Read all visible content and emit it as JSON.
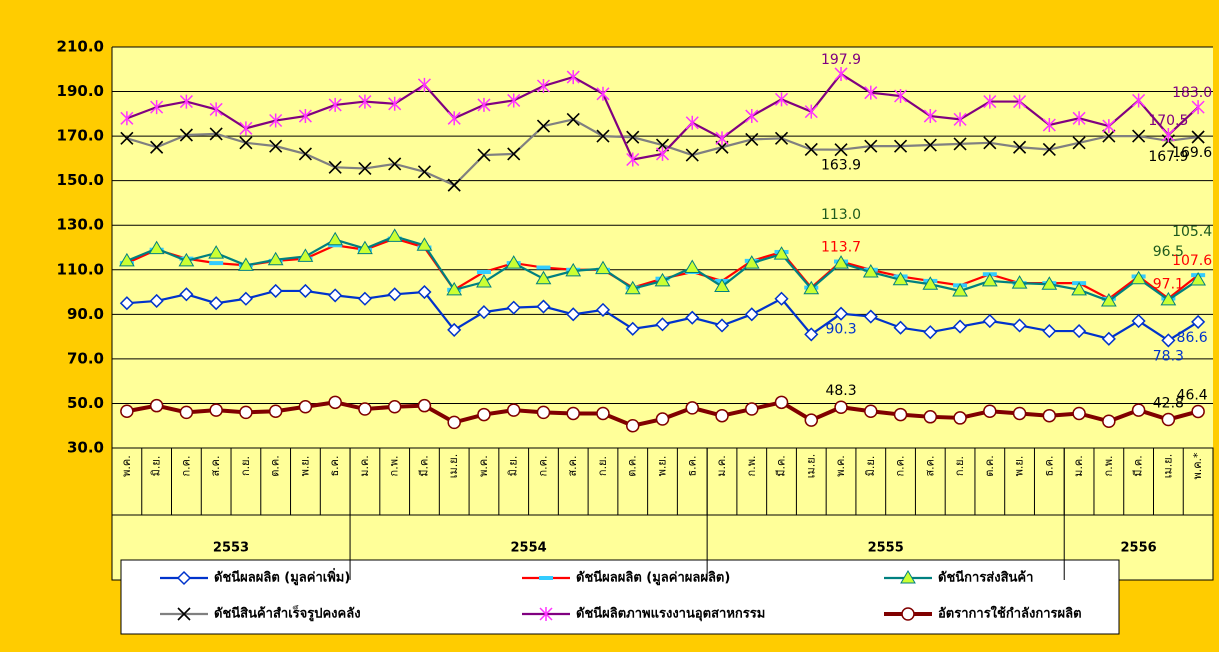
{
  "chart_data": {
    "type": "line",
    "categories": [
      "พ.ค.",
      "มิ.ย.",
      "ก.ค.",
      "ส.ค.",
      "ก.ย.",
      "ต.ค.",
      "พ.ย.",
      "ธ.ค.",
      "ม.ค.",
      "ก.พ.",
      "มี.ค.",
      "เม.ย.",
      "พ.ค.",
      "มิ.ย.",
      "ก.ค.",
      "ส.ค.",
      "ก.ย.",
      "ต.ค.",
      "พ.ย.",
      "ธ.ค.",
      "ม.ค.",
      "ก.พ.",
      "มี.ค.",
      "เม.ย.",
      "พ.ค.",
      "มิ.ย.",
      "ก.ค.",
      "ส.ค.",
      "ก.ย.",
      "ต.ค.",
      "พ.ย.",
      "ธ.ค.",
      "ม.ค.",
      "ก.พ.",
      "มี.ค.",
      "เม.ย.",
      "พ.ค.*"
    ],
    "groups": [
      {
        "label": "2553",
        "count": 8
      },
      {
        "label": "2554",
        "count": 12
      },
      {
        "label": "2555",
        "count": 12
      },
      {
        "label": "2556",
        "count": 5
      }
    ],
    "ylim": [
      30,
      210
    ],
    "yticks": [
      {
        "value": 30,
        "label": "30.0"
      },
      {
        "value": 50,
        "label": "50.0"
      },
      {
        "value": 70,
        "label": "70.0"
      },
      {
        "value": 90,
        "label": "90.0"
      },
      {
        "value": 110,
        "label": "110.0"
      },
      {
        "value": 130,
        "label": "130.0"
      },
      {
        "value": 150,
        "label": "150.0"
      },
      {
        "value": 170,
        "label": "170.0"
      },
      {
        "value": 190,
        "label": "190.0"
      },
      {
        "value": 210,
        "label": "210.0"
      }
    ],
    "grid": true,
    "series": [
      {
        "name": "ดัชนีผลผลิต (มูลค่าเพิ่ม)",
        "color": "#0033cc",
        "marker": "diamond",
        "marker_color": "#ffffff",
        "label_color": "#0033cc",
        "values": [
          95,
          96,
          99,
          95,
          97,
          100.5,
          100.5,
          98.5,
          97,
          99,
          100,
          83,
          91,
          93,
          93.5,
          90,
          92,
          83.5,
          85.5,
          88.5,
          85,
          90,
          97,
          81,
          90.3,
          89,
          84,
          82,
          84.5,
          87,
          85,
          82.5,
          82.5,
          79,
          87,
          78.3,
          86.6
        ],
        "value_labels": [
          null,
          null,
          null,
          null,
          null,
          null,
          null,
          null,
          null,
          null,
          null,
          null,
          null,
          null,
          null,
          null,
          null,
          null,
          null,
          null,
          null,
          null,
          null,
          null,
          "90.3",
          null,
          null,
          null,
          null,
          null,
          null,
          null,
          null,
          null,
          null,
          "78.3",
          "86.6"
        ]
      },
      {
        "name": "ดัชนีผลผลิต (มูลค่าผลผลิต)",
        "color": "#ff0000",
        "marker": "dash",
        "marker_color": "#33ccff",
        "label_color": "#ff0000",
        "values": [
          113,
          119,
          115,
          113,
          112,
          114,
          115,
          121,
          119,
          124,
          120,
          101,
          109,
          113,
          111,
          110,
          110,
          102,
          106,
          109,
          105,
          114,
          118,
          102,
          113.7,
          110,
          107,
          105,
          103,
          108,
          104,
          104,
          104,
          97,
          107,
          97.1,
          107.6
        ],
        "value_labels": [
          null,
          null,
          null,
          null,
          null,
          null,
          null,
          null,
          null,
          null,
          null,
          null,
          null,
          null,
          null,
          null,
          null,
          null,
          null,
          null,
          null,
          null,
          null,
          null,
          "113.7",
          null,
          null,
          null,
          null,
          null,
          null,
          null,
          null,
          null,
          null,
          "97.1",
          "107.6"
        ]
      },
      {
        "name": "ดัชนีการส่งสินค้า",
        "color": "#008080",
        "marker": "triangle",
        "marker_color": "#ccff33",
        "label_color": "#1e5a1e",
        "values": [
          114,
          119.5,
          114,
          117.5,
          112,
          114.5,
          116,
          123.5,
          119.5,
          125,
          121,
          101,
          104.5,
          113,
          106,
          109.5,
          110.5,
          101.5,
          105,
          111,
          102.5,
          113,
          117,
          101.5,
          113,
          109,
          105.5,
          103.5,
          100.5,
          105,
          104,
          103.5,
          101,
          96,
          106,
          96.5,
          105.4
        ],
        "value_labels": [
          null,
          null,
          null,
          null,
          null,
          null,
          null,
          null,
          null,
          null,
          null,
          null,
          null,
          null,
          null,
          null,
          null,
          null,
          null,
          null,
          null,
          null,
          null,
          null,
          "113.0",
          null,
          null,
          null,
          null,
          null,
          null,
          null,
          null,
          null,
          null,
          "96.5",
          "105.4"
        ]
      },
      {
        "name": "ดัชนีสินค้าสำเร็จรูปคงคลัง",
        "color": "#808080",
        "marker": "x",
        "marker_color": "#000000",
        "label_color": "#000000",
        "values": [
          169,
          165,
          170.5,
          171,
          167,
          165.5,
          162,
          156,
          155.5,
          157.5,
          154,
          148,
          161.5,
          162,
          174.5,
          177.5,
          170,
          169.5,
          166,
          161.5,
          165,
          168.5,
          169,
          164,
          163.9,
          165.5,
          165.5,
          166,
          166.5,
          167,
          165,
          164,
          167,
          170,
          170,
          167.9,
          169.6
        ],
        "value_labels": [
          null,
          null,
          null,
          null,
          null,
          null,
          null,
          null,
          null,
          null,
          null,
          null,
          null,
          null,
          null,
          null,
          null,
          null,
          null,
          null,
          null,
          null,
          null,
          null,
          "163.9",
          null,
          null,
          null,
          null,
          null,
          null,
          null,
          null,
          null,
          null,
          "167.9",
          "169.6"
        ]
      },
      {
        "name": "ดัชนีผลิตภาพแรงงานอุตสาหกรรม",
        "color": "#800080",
        "marker": "star",
        "marker_color": "#ff33ff",
        "label_color": "#800080",
        "values": [
          178,
          183,
          185.5,
          182,
          173.5,
          177,
          179,
          184,
          185.5,
          184.5,
          193,
          178,
          184,
          186,
          192.5,
          196.5,
          189,
          159.5,
          162,
          176,
          169,
          179,
          186.5,
          181,
          197.9,
          189.5,
          188,
          179,
          177.5,
          185.5,
          185.5,
          175,
          178,
          174.5,
          186,
          170.5,
          183
        ],
        "value_labels": [
          null,
          null,
          null,
          null,
          null,
          null,
          null,
          null,
          null,
          null,
          null,
          null,
          null,
          null,
          null,
          null,
          null,
          null,
          null,
          null,
          null,
          null,
          null,
          null,
          "197.9",
          null,
          null,
          null,
          null,
          null,
          null,
          null,
          null,
          null,
          null,
          "170.5",
          "183.0"
        ]
      },
      {
        "name": "อัตราการใช้กำลังการผลิต",
        "color": "#800000",
        "marker": "circle",
        "marker_color": "#ffffff",
        "label_color": "#000000",
        "values": [
          46.5,
          49,
          46,
          47,
          46,
          46.5,
          48.5,
          50.5,
          47.5,
          48.5,
          49,
          41.5,
          45,
          47,
          46,
          45.5,
          45.5,
          40,
          43,
          48,
          44.5,
          47.5,
          50.5,
          42.5,
          48.3,
          46.5,
          45,
          44,
          43.5,
          46.5,
          45.5,
          44.5,
          45.5,
          42,
          47,
          42.8,
          46.4
        ],
        "value_labels": [
          null,
          null,
          null,
          null,
          null,
          null,
          null,
          null,
          null,
          null,
          null,
          null,
          null,
          null,
          null,
          null,
          null,
          null,
          null,
          null,
          null,
          null,
          null,
          null,
          "48.3",
          null,
          null,
          null,
          null,
          null,
          null,
          null,
          null,
          null,
          null,
          "42.8",
          "46.4"
        ]
      }
    ]
  }
}
